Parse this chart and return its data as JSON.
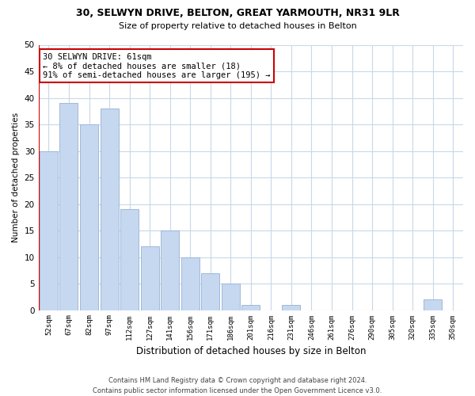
{
  "title": "30, SELWYN DRIVE, BELTON, GREAT YARMOUTH, NR31 9LR",
  "subtitle": "Size of property relative to detached houses in Belton",
  "xlabel": "Distribution of detached houses by size in Belton",
  "ylabel": "Number of detached properties",
  "bar_labels": [
    "52sqm",
    "67sqm",
    "82sqm",
    "97sqm",
    "112sqm",
    "127sqm",
    "141sqm",
    "156sqm",
    "171sqm",
    "186sqm",
    "201sqm",
    "216sqm",
    "231sqm",
    "246sqm",
    "261sqm",
    "276sqm",
    "290sqm",
    "305sqm",
    "320sqm",
    "335sqm",
    "350sqm"
  ],
  "bar_values": [
    30,
    39,
    35,
    38,
    19,
    12,
    15,
    10,
    7,
    5,
    1,
    0,
    1,
    0,
    0,
    0,
    0,
    0,
    0,
    2,
    0
  ],
  "bar_color": "#c5d8f0",
  "bar_edge_color": "#a0b8d8",
  "marker_line_color": "#cc0000",
  "annotation_text": "30 SELWYN DRIVE: 61sqm\n← 8% of detached houses are smaller (18)\n91% of semi-detached houses are larger (195) →",
  "annotation_box_color": "#ffffff",
  "annotation_box_edge": "#cc0000",
  "ylim": [
    0,
    50
  ],
  "yticks": [
    0,
    5,
    10,
    15,
    20,
    25,
    30,
    35,
    40,
    45,
    50
  ],
  "footnote": "Contains HM Land Registry data © Crown copyright and database right 2024.\nContains public sector information licensed under the Open Government Licence v3.0.",
  "bg_color": "#ffffff",
  "grid_color": "#c8d8e8"
}
